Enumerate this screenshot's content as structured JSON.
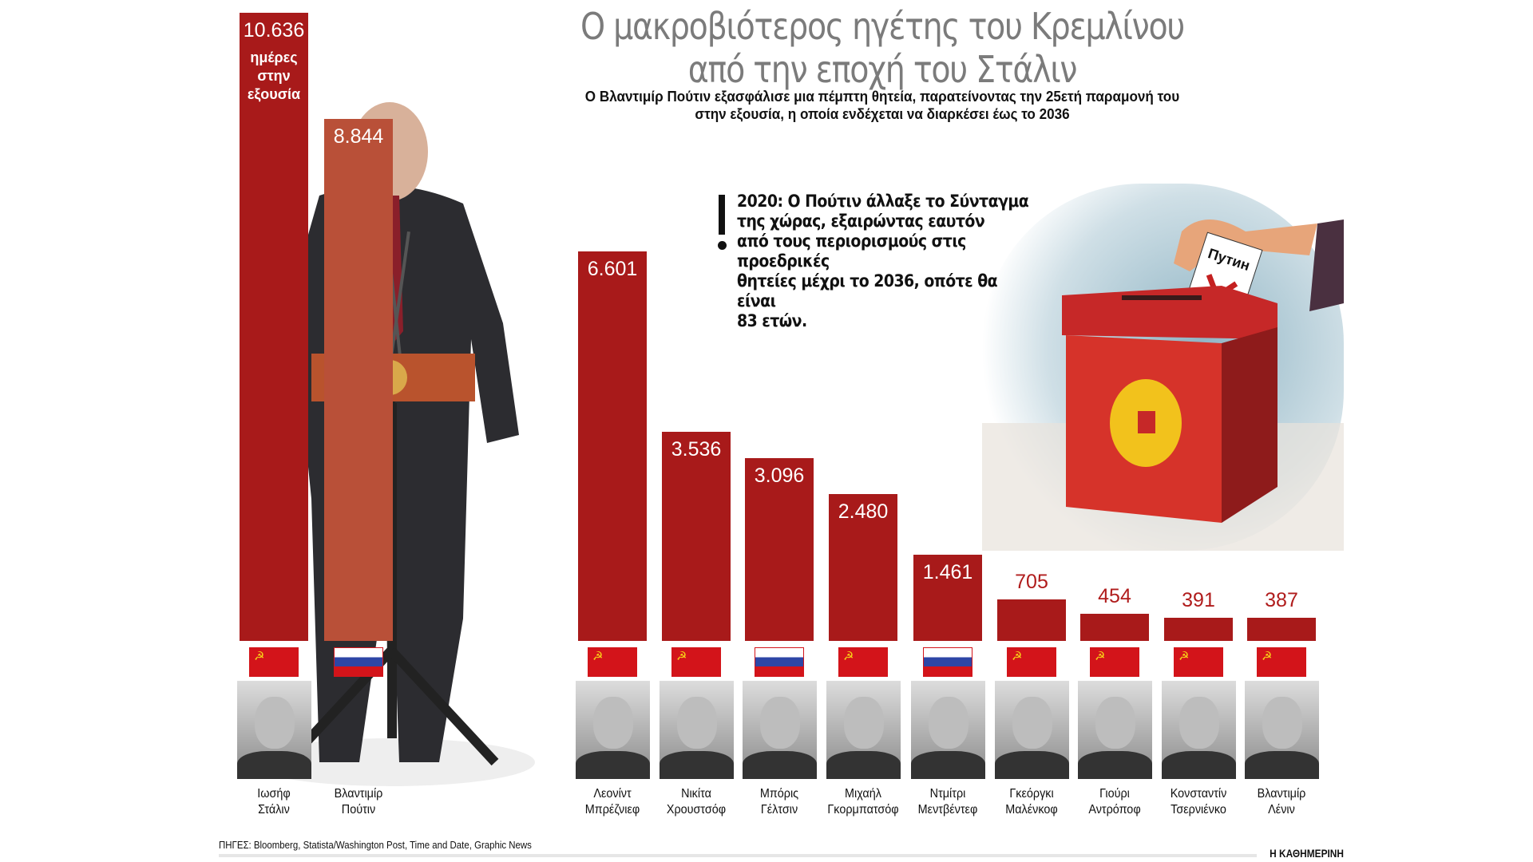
{
  "header": {
    "title_line1": "Ο μακροβιότερος ηγέτης του Κρεμλίνου",
    "title_line2": "από την εποχή του Στάλιν",
    "subtitle_line1": "Ο Βλαντιμίρ Πούτιν εξασφάλισε μια πέμπτη θητεία, παρατείνοντας την 25ετή παραμονή του",
    "subtitle_line2": "στην εξουσία, η οποία ενδέχεται να διαρκέσει έως το 2036"
  },
  "annotation": {
    "lines": [
      "2020: Ο Πούτιν άλλαξε το Σύνταγμα",
      "της χώρας, εξαιρώντας εαυτόν",
      "από τους περιορισμούς στις προεδρικές",
      "θητείες μέχρι το 2036, οπότε θα είναι",
      "83 ετών."
    ]
  },
  "ballot": {
    "label": "Путин"
  },
  "chart_data": {
    "type": "bar",
    "title": "Ο μακροβιότερος ηγέτης του Κρεμλίνου από την εποχή του Στάλιν",
    "unit_label": "ημέρες στην εξουσία",
    "categories": [
      "Ιωσήφ Στάλιν",
      "Βλαντιμίρ Πούτιν",
      "Λεονίντ Μπρέζνιεφ",
      "Νικίτα Χρουστσόφ",
      "Μπόρις Γέλτσιν",
      "Μιχαήλ Γκορμπατσόφ",
      "Ντμίτρι Μεντβέντεφ",
      "Γκεόργκι Μαλένκοφ",
      "Γιούρι Αντρόποφ",
      "Κονσταντίν Τσερνιένκο",
      "Βλαντιμίρ Λένιν"
    ],
    "values": [
      10636,
      8844,
      6601,
      3536,
      3096,
      2480,
      1461,
      705,
      454,
      391,
      387
    ],
    "value_labels": [
      "10.636",
      "8.844",
      "6.601",
      "3.536",
      "3.096",
      "2.480",
      "1.461",
      "705",
      "454",
      "391",
      "387"
    ],
    "leaders": [
      {
        "first": "Ιωσήφ",
        "last": "Στάλιν",
        "flag": "ussr"
      },
      {
        "first": "Βλαντιμίρ",
        "last": "Πούτιν",
        "flag": "russia"
      },
      {
        "first": "Λεονίντ",
        "last": "Μπρέζνιεφ",
        "flag": "ussr"
      },
      {
        "first": "Νικίτα",
        "last": "Χρουστσόφ",
        "flag": "ussr"
      },
      {
        "first": "Μπόρις",
        "last": "Γέλτσιν",
        "flag": "russia"
      },
      {
        "first": "Μιχαήλ",
        "last": "Γκορμπατσόφ",
        "flag": "ussr"
      },
      {
        "first": "Ντμίτρι",
        "last": "Μεντβέντεφ",
        "flag": "russia"
      },
      {
        "first": "Γκεόργκι",
        "last": "Μαλένκοφ",
        "flag": "ussr"
      },
      {
        "first": "Γιούρι",
        "last": "Αντρόποφ",
        "flag": "ussr"
      },
      {
        "first": "Κονσταντίν",
        "last": "Τσερνιένκο",
        "flag": "ussr"
      },
      {
        "first": "Βλαντιμίρ",
        "last": "Λένιν",
        "flag": "ussr"
      }
    ],
    "ylim": [
      0,
      10636
    ],
    "grid": false,
    "colors": {
      "bar": "#a81a1a",
      "highlight": "#b95038",
      "label_outside": "#b01c1c"
    }
  },
  "footer": {
    "sources": "ΠΗΓΕΣ: Bloomberg, Statista/Washington Post, Time and Date, Graphic News",
    "brand": "Η ΚΑΘΗΜΕΡΙΝΗ"
  }
}
